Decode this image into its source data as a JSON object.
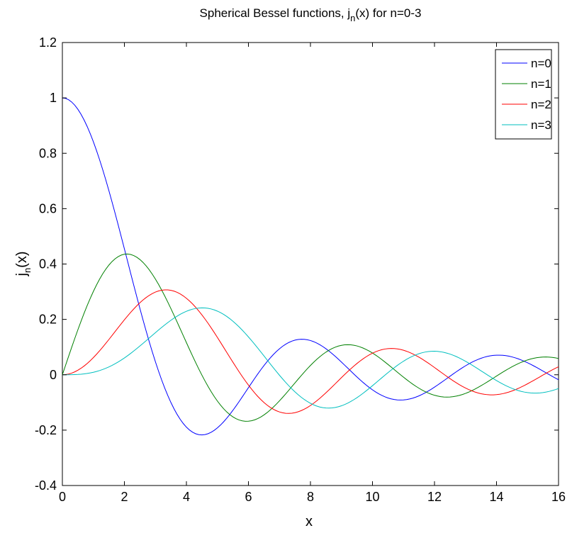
{
  "chart_data": {
    "type": "line",
    "title": {
      "prefix": "Spherical Bessel functions, j",
      "subscript": "n",
      "suffix": "(x) for n=0-3"
    },
    "xlabel": "x",
    "ylabel": {
      "base": "j",
      "subscript": "n",
      "suffix": "(x)"
    },
    "xlim": [
      0,
      16
    ],
    "ylim": [
      -0.4,
      1.2
    ],
    "xticks": [
      0,
      2,
      4,
      6,
      8,
      10,
      12,
      14,
      16
    ],
    "yticks": [
      -0.4,
      -0.2,
      0,
      0.2,
      0.4,
      0.6,
      0.8,
      1,
      1.2
    ],
    "xtick_labels": [
      "0",
      "2",
      "4",
      "6",
      "8",
      "10",
      "12",
      "14",
      "16"
    ],
    "ytick_labels": [
      "-0.4",
      "-0.2",
      "0",
      "0.2",
      "0.4",
      "0.6",
      "0.8",
      "1",
      "1.2"
    ],
    "grid": false,
    "legend_position": "top-right",
    "x_step": 0.1,
    "series": [
      {
        "name": "n=0",
        "order": 0,
        "color": "#0000ff"
      },
      {
        "name": "n=1",
        "order": 1,
        "color": "#008000"
      },
      {
        "name": "n=2",
        "order": 2,
        "color": "#ff0000"
      },
      {
        "name": "n=3",
        "order": 3,
        "color": "#00bfbf"
      }
    ]
  }
}
